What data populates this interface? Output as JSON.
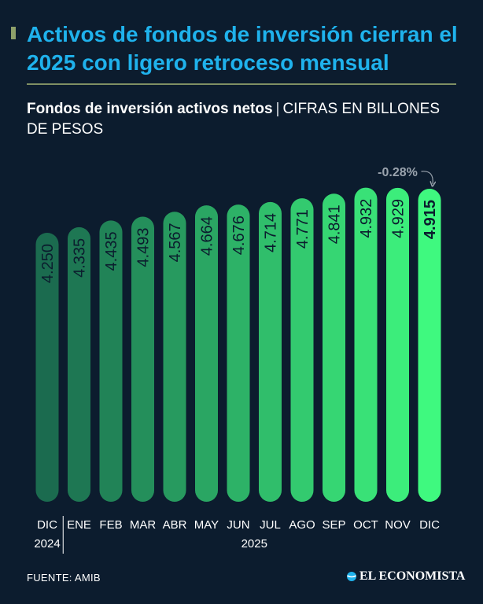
{
  "headline": "Activos de fondos de inversión cierran el 2025 con ligero retroceso mensual",
  "subtitle": {
    "title": "Fondos de inversión activos netos",
    "separator": "|",
    "units": "CIFRAS EN BILLONES DE PESOS"
  },
  "chart_data": {
    "type": "bar",
    "orientation": "vertical",
    "title": "Fondos de inversión activos netos",
    "units": "Billones de pesos",
    "categories": [
      "DIC",
      "ENE",
      "FEB",
      "MAR",
      "ABR",
      "MAY",
      "JUN",
      "JUL",
      "AGO",
      "SEP",
      "OCT",
      "NOV",
      "DIC"
    ],
    "year_groups": [
      {
        "year": "2024",
        "from": 0,
        "to": 0
      },
      {
        "year": "2025",
        "from": 1,
        "to": 12
      }
    ],
    "values": [
      4.25,
      4.335,
      4.435,
      4.493,
      4.567,
      4.664,
      4.676,
      4.714,
      4.771,
      4.841,
      4.932,
      4.929,
      4.915
    ],
    "value_labels": [
      "4.250",
      "4.335",
      "4.435",
      "4.493",
      "4.567",
      "4.664",
      "4.676",
      "4.714",
      "4.771",
      "4.841",
      "4.932",
      "4.929",
      "4.915"
    ],
    "highlight_index": 12,
    "annotation": {
      "text": "-0.28%",
      "from_index": 11,
      "to_index": 12
    },
    "ylim": [
      0,
      5
    ],
    "xlabel": "",
    "ylabel": "",
    "grid": false,
    "colors": {
      "start": "#1b6b4f",
      "end": "#3ff97f",
      "label": "#0b1d2e",
      "annotation": "#9aa3ad",
      "axis_text": "#ffffff"
    }
  },
  "footer": {
    "source": "FUENTE: AMIB",
    "brand": "EL ECONOMISTA",
    "brand_icon": "globe-icon"
  }
}
